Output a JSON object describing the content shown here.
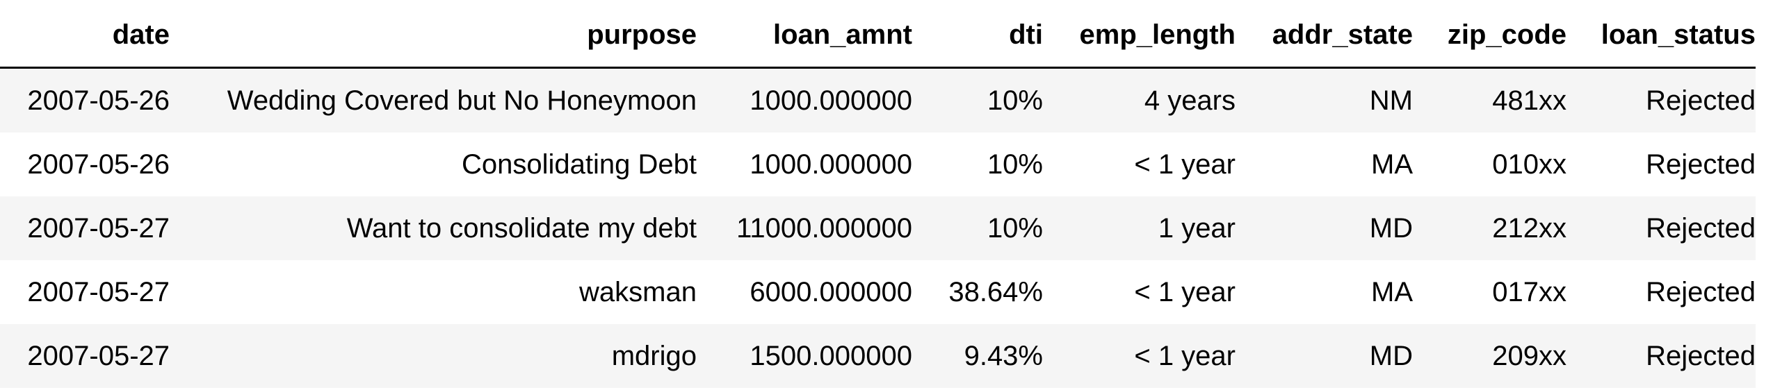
{
  "table": {
    "columns": [
      "date",
      "purpose",
      "loan_amnt",
      "dti",
      "emp_length",
      "addr_state",
      "zip_code",
      "loan_status"
    ],
    "rows": [
      [
        "2007-05-26",
        "Wedding Covered but No Honeymoon",
        "1000.000000",
        "10%",
        "4 years",
        "NM",
        "481xx",
        "Rejected"
      ],
      [
        "2007-05-26",
        "Consolidating Debt",
        "1000.000000",
        "10%",
        "< 1 year",
        "MA",
        "010xx",
        "Rejected"
      ],
      [
        "2007-05-27",
        "Want to consolidate my debt",
        "11000.000000",
        "10%",
        "1 year",
        "MD",
        "212xx",
        "Rejected"
      ],
      [
        "2007-05-27",
        "waksman",
        "6000.000000",
        "38.64%",
        "< 1 year",
        "MA",
        "017xx",
        "Rejected"
      ],
      [
        "2007-05-27",
        "mdrigo",
        "1500.000000",
        "9.43%",
        "< 1 year",
        "MD",
        "209xx",
        "Rejected"
      ]
    ]
  }
}
